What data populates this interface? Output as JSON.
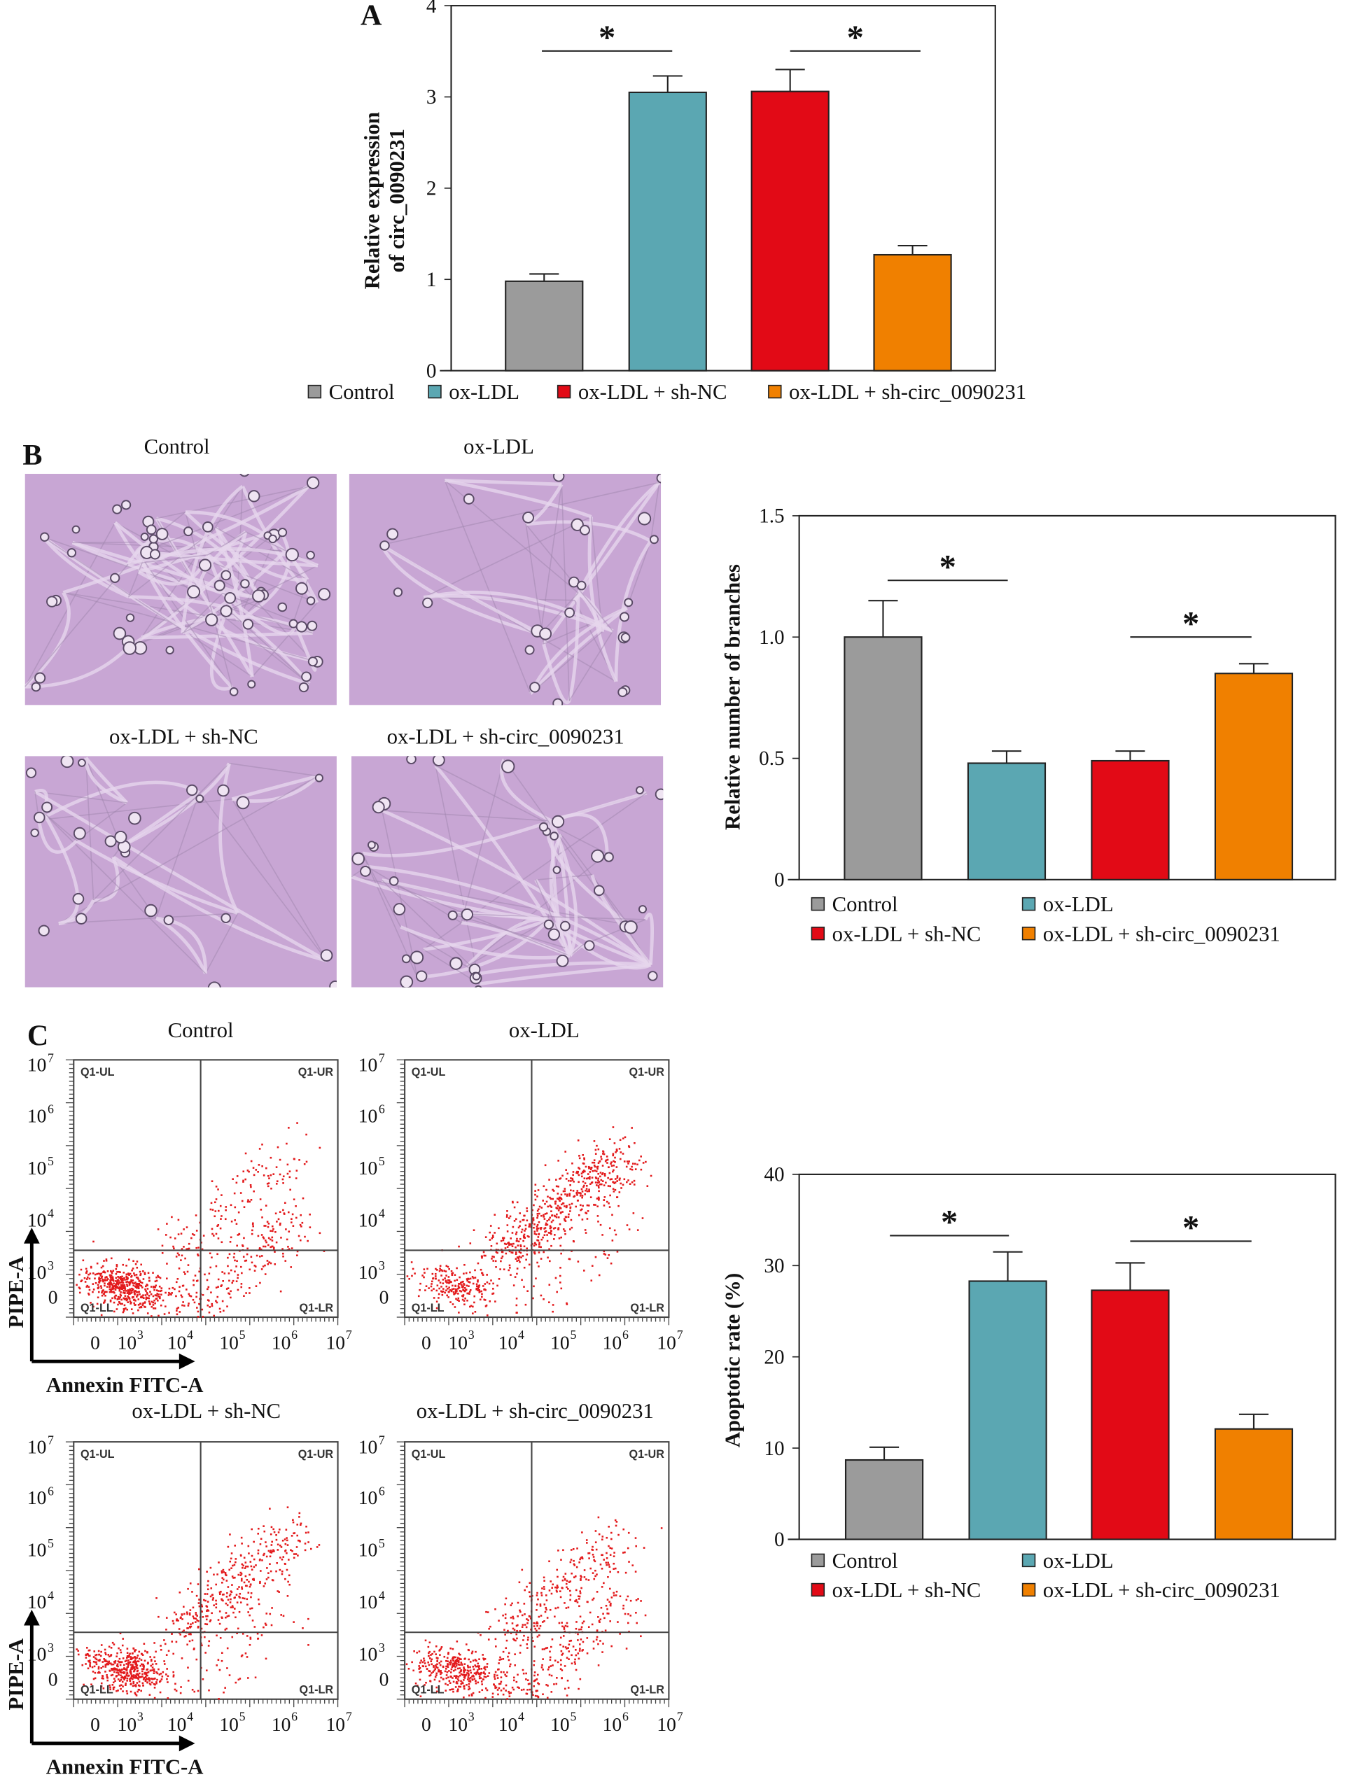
{
  "colors": {
    "Control": "#9b9b9b",
    "ox-LDL": "#5ba7b2",
    "ox-LDL + sh-NC": "#e20a16",
    "ox-LDL + sh-circ_0090231": "#f08000"
  },
  "panels": {
    "A": "A",
    "B": "B",
    "C": "C"
  },
  "chart_data": [
    {
      "type": "bar",
      "panel": "A",
      "categories": [
        "Control",
        "ox-LDL",
        "ox-LDL + sh-NC",
        "ox-LDL + sh-circ_0090231"
      ],
      "values": [
        0.98,
        3.05,
        3.06,
        1.27
      ],
      "error": [
        0.08,
        0.18,
        0.24,
        0.1
      ],
      "ylabel_lines": [
        "Relative expression",
        "of circ_0090231"
      ],
      "ylim": [
        0,
        4
      ],
      "yticks": [
        "0",
        "1",
        "2",
        "3",
        "4"
      ],
      "significance": [
        {
          "between": [
            0,
            1
          ],
          "label": "*"
        },
        {
          "between": [
            2,
            3
          ],
          "label": "*"
        }
      ],
      "legend": [
        "Control",
        "ox-LDL",
        "ox-LDL + sh-NC",
        "ox-LDL + sh-circ_0090231"
      ],
      "legend_placement": "bottom"
    },
    {
      "type": "bar",
      "panel": "B",
      "categories": [
        "Control",
        "ox-LDL",
        "ox-LDL + sh-NC",
        "ox-LDL + sh-circ_0090231"
      ],
      "values": [
        1.0,
        0.48,
        0.49,
        0.85
      ],
      "error": [
        0.15,
        0.05,
        0.04,
        0.04
      ],
      "ylabel_lines": [
        "Relative number of branches"
      ],
      "ylim": [
        0,
        1.5
      ],
      "yticks": [
        "0",
        "0.5",
        "1.0",
        "1.5"
      ],
      "significance": [
        {
          "between": [
            0,
            1
          ],
          "label": "*"
        },
        {
          "between": [
            2,
            3
          ],
          "label": "*"
        }
      ],
      "legend": [
        "Control",
        "ox-LDL",
        "ox-LDL + sh-NC",
        "ox-LDL + sh-circ_0090231"
      ],
      "legend_placement": "bottom"
    },
    {
      "type": "bar",
      "panel": "C",
      "categories": [
        "Control",
        "ox-LDL",
        "ox-LDL + sh-NC",
        "ox-LDL + sh-circ_0090231"
      ],
      "values": [
        8.7,
        28.3,
        27.3,
        12.1
      ],
      "error": [
        1.4,
        3.2,
        3.0,
        1.6
      ],
      "ylabel_lines": [
        "Apoptotic rate (%)"
      ],
      "ylim": [
        0,
        40
      ],
      "yticks": [
        "0",
        "10",
        "20",
        "30",
        "40"
      ],
      "significance": [
        {
          "between": [
            0,
            1
          ],
          "label": "*"
        },
        {
          "between": [
            2,
            3
          ],
          "label": "*"
        }
      ],
      "legend": [
        "Control",
        "ox-LDL",
        "ox-LDL + sh-NC",
        "ox-LDL + sh-circ_0090231"
      ],
      "legend_placement": "bottom"
    }
  ],
  "micrographs": {
    "titles": [
      "Control",
      "ox-LDL",
      "ox-LDL + sh-NC",
      "ox-LDL + sh-circ_0090231"
    ]
  },
  "flow_plots": {
    "titles": [
      "Control",
      "ox-LDL",
      "ox-LDL + sh-NC",
      "ox-LDL + sh-circ_0090231"
    ],
    "quadrants": [
      "Q1-UL",
      "Q1-UR",
      "Q1-LL",
      "Q1-LR"
    ],
    "xlabel": "Annexin FITC-A",
    "ylabel": "PIPE-A",
    "xticks": [
      "0",
      "10",
      "10",
      "10",
      "10",
      "10"
    ],
    "xtick_exp": [
      "",
      "3",
      "4",
      "5",
      "6",
      "7"
    ],
    "yticks": [
      "10",
      "10",
      "10",
      "10",
      "10",
      "0"
    ],
    "ytick_exp": [
      "7",
      "6",
      "5",
      "4",
      "3",
      ""
    ]
  }
}
